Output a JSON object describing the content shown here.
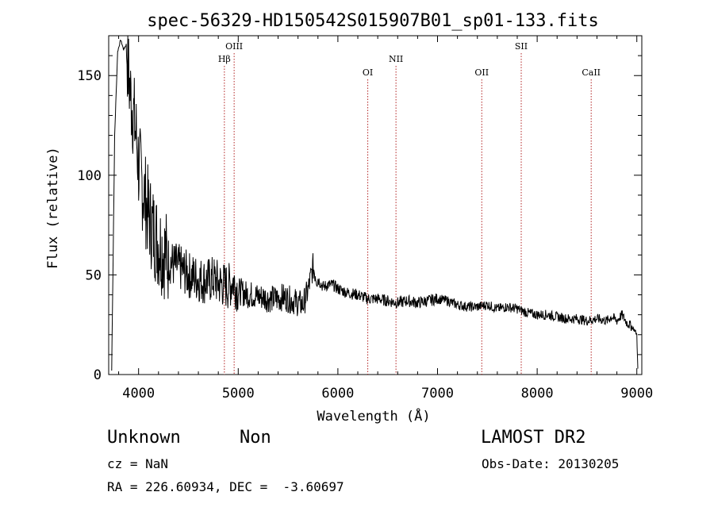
{
  "chart_data": {
    "type": "line",
    "title": "spec-56329-HD150542S015907B01_sp01-133.fits",
    "xlabel": "Wavelength (Å)",
    "ylabel": "Flux (relative)",
    "xlim": [
      3700,
      9050
    ],
    "ylim": [
      0,
      170
    ],
    "xticks": [
      "4000",
      "5000",
      "6000",
      "7000",
      "8000",
      "9000"
    ],
    "yticks": [
      "0",
      "50",
      "100",
      "150"
    ],
    "series": [
      {
        "x": [
          3730,
          3760,
          3790,
          3820,
          3850,
          3880,
          3900,
          3920,
          3950,
          3980,
          4000,
          4050,
          4100,
          4150,
          4200,
          4250,
          4300,
          4350,
          4400,
          4450,
          4500,
          4550,
          4600,
          4650,
          4700,
          4750,
          4800,
          4850,
          4900,
          4950,
          5000,
          5050,
          5100,
          5150,
          5200,
          5250,
          5300,
          5350,
          5400,
          5450,
          5500,
          5550,
          5600,
          5650,
          5700,
          5750,
          5800,
          5850,
          5900,
          5950,
          6000,
          6100,
          6200,
          6300,
          6400,
          6500,
          6600,
          6700,
          6800,
          6900,
          7000,
          7100,
          7200,
          7300,
          7400,
          7500,
          7600,
          7700,
          7800,
          7900,
          8000,
          8100,
          8200,
          8300,
          8400,
          8500,
          8600,
          8700,
          8750,
          8800,
          8850,
          8900,
          8950,
          8980,
          9000,
          9010
        ],
        "y": [
          2,
          120,
          162,
          168,
          163,
          166,
          150,
          140,
          130,
          118,
          105,
          92,
          80,
          72,
          66,
          62,
          58,
          55,
          54,
          52,
          50,
          49,
          48,
          47,
          47,
          48,
          46,
          45,
          44,
          47,
          42,
          41,
          40,
          40,
          39,
          39,
          38,
          38,
          38,
          39,
          38,
          37,
          36,
          35,
          42,
          54,
          48,
          44,
          45,
          45,
          43,
          41,
          40,
          38,
          38,
          37,
          36,
          37,
          36,
          37,
          38,
          37,
          35,
          34,
          34,
          35,
          33,
          34,
          33,
          31,
          30,
          30,
          29,
          28,
          28,
          27,
          28,
          27,
          29,
          27,
          30,
          26,
          24,
          22,
          20,
          3
        ]
      }
    ],
    "lines": [
      {
        "label": "Hβ",
        "x": 4861,
        "row": 2
      },
      {
        "label": "OIII",
        "x": 4959,
        "row": 1
      },
      {
        "label": "OI",
        "x": 6300,
        "row": 3
      },
      {
        "label": "NII",
        "x": 6583,
        "row": 2
      },
      {
        "label": "OII",
        "x": 7444,
        "row": 3
      },
      {
        "label": "SII",
        "x": 7840,
        "row": 1
      },
      {
        "label": "CaII",
        "x": 8542,
        "row": 3
      }
    ],
    "line_color": "#b22222",
    "grid": false
  },
  "footer": {
    "object_class": "Unknown",
    "subclass": "Non",
    "survey": "LAMOST DR2",
    "cz": "cz = NaN",
    "obs_date": "Obs-Date: 20130205",
    "coords": "RA = 226.60934, DEC =  -3.60697"
  }
}
